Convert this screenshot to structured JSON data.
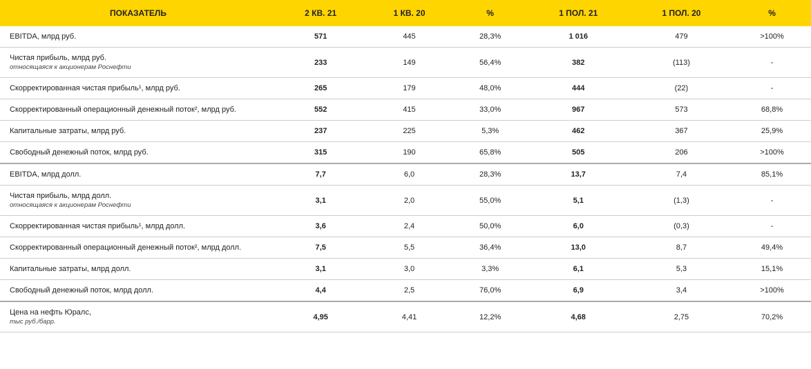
{
  "table": {
    "header_bg": "#ffd500",
    "border_color": "#cccccc",
    "columns": [
      {
        "key": "label",
        "header": "ПОКАЗАТЕЛЬ",
        "align": "left",
        "bold": false
      },
      {
        "key": "q2_21",
        "header": "2 КВ. 21",
        "align": "center",
        "bold": true
      },
      {
        "key": "q1_20",
        "header": "1 КВ. 20",
        "align": "center",
        "bold": false
      },
      {
        "key": "pct1",
        "header": "%",
        "align": "center",
        "bold": false
      },
      {
        "key": "h1_21",
        "header": "1 ПОЛ. 21",
        "align": "center",
        "bold": true
      },
      {
        "key": "h1_20",
        "header": "1 ПОЛ. 20",
        "align": "center",
        "bold": false
      },
      {
        "key": "pct2",
        "header": "%",
        "align": "center",
        "bold": false
      }
    ],
    "rows": [
      {
        "label": "EBITDA, млрд руб.",
        "sub": "",
        "q2_21": "571",
        "q1_20": "445",
        "pct1": "28,3%",
        "h1_21": "1 016",
        "h1_20": "479",
        "pct2": ">100%",
        "section_break": false
      },
      {
        "label": "Чистая прибыль, млрд руб.",
        "sub": "относящаяся к акционерам Роснефти",
        "q2_21": "233",
        "q1_20": "149",
        "pct1": "56,4%",
        "h1_21": "382",
        "h1_20": "(113)",
        "pct2": "-",
        "section_break": false
      },
      {
        "label": "Скорректированная чистая прибыль¹, млрд руб.",
        "sub": "",
        "q2_21": "265",
        "q1_20": "179",
        "pct1": "48,0%",
        "h1_21": "444",
        "h1_20": "(22)",
        "pct2": "-",
        "section_break": false
      },
      {
        "label": "Скорректированный операционный денежный поток², млрд руб.",
        "sub": "",
        "q2_21": "552",
        "q1_20": "415",
        "pct1": "33,0%",
        "h1_21": "967",
        "h1_20": "573",
        "pct2": "68,8%",
        "section_break": false
      },
      {
        "label": "Капитальные затраты, млрд руб.",
        "sub": "",
        "q2_21": "237",
        "q1_20": "225",
        "pct1": "5,3%",
        "h1_21": "462",
        "h1_20": "367",
        "pct2": "25,9%",
        "section_break": false
      },
      {
        "label": "Свободный денежный поток, млрд руб.",
        "sub": "",
        "q2_21": "315",
        "q1_20": "190",
        "pct1": "65,8%",
        "h1_21": "505",
        "h1_20": "206",
        "pct2": ">100%",
        "section_break": false
      },
      {
        "label": "EBITDA, млрд долл.",
        "sub": "",
        "q2_21": "7,7",
        "q1_20": "6,0",
        "pct1": "28,3%",
        "h1_21": "13,7",
        "h1_20": "7,4",
        "pct2": "85,1%",
        "section_break": true
      },
      {
        "label": "Чистая прибыль, млрд долл.",
        "sub": "относящаяся к акционерам Роснефти",
        "q2_21": "3,1",
        "q1_20": "2,0",
        "pct1": "55,0%",
        "h1_21": "5,1",
        "h1_20": "(1,3)",
        "pct2": "-",
        "section_break": false
      },
      {
        "label": "Скорректированная чистая прибыль¹, млрд долл.",
        "sub": "",
        "q2_21": "3,6",
        "q1_20": "2,4",
        "pct1": "50,0%",
        "h1_21": "6,0",
        "h1_20": "(0,3)",
        "pct2": "-",
        "section_break": false
      },
      {
        "label": "Скорректированный операционный денежный поток², млрд долл.",
        "sub": "",
        "q2_21": "7,5",
        "q1_20": "5,5",
        "pct1": "36,4%",
        "h1_21": "13,0",
        "h1_20": "8,7",
        "pct2": "49,4%",
        "section_break": false
      },
      {
        "label": "Капитальные затраты, млрд долл.",
        "sub": "",
        "q2_21": "3,1",
        "q1_20": "3,0",
        "pct1": "3,3%",
        "h1_21": "6,1",
        "h1_20": "5,3",
        "pct2": "15,1%",
        "section_break": false
      },
      {
        "label": "Свободный денежный поток, млрд долл.",
        "sub": "",
        "q2_21": "4,4",
        "q1_20": "2,5",
        "pct1": "76,0%",
        "h1_21": "6,9",
        "h1_20": "3,4",
        "pct2": ">100%",
        "section_break": false
      },
      {
        "label": "Цена на нефть Юралс,",
        "sub": "тыс руб./барр.",
        "q2_21": "4,95",
        "q1_20": "4,41",
        "pct1": "12,2%",
        "h1_21": "4,68",
        "h1_20": "2,75",
        "pct2": "70,2%",
        "section_break": true
      }
    ]
  }
}
